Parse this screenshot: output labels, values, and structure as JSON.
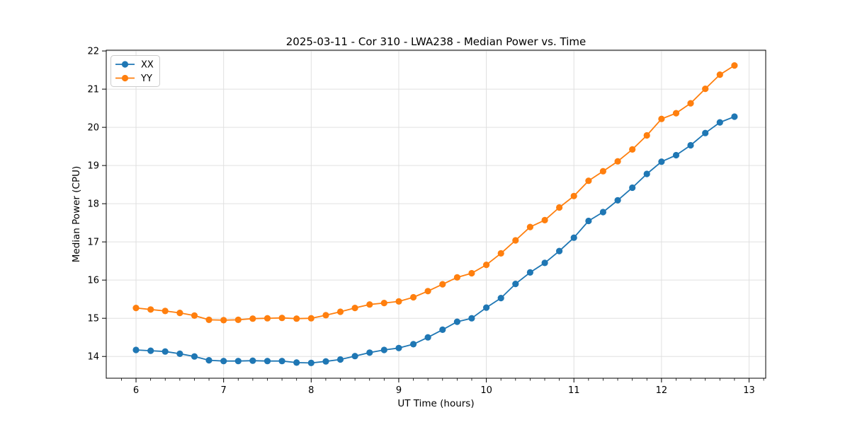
{
  "chart_data": {
    "type": "line",
    "title": "2025-03-11 - Cor 310 - LWA238 - Median Power vs. Time",
    "xlabel": "UT Time (hours)",
    "ylabel": "Median Power (CPU)",
    "grid": true,
    "legend_position": "upper left",
    "xlim": [
      5.66,
      13.19
    ],
    "ylim": [
      13.43,
      22.02
    ],
    "xticks": [
      6,
      7,
      8,
      9,
      10,
      11,
      12,
      13
    ],
    "yticks": [
      14,
      15,
      16,
      17,
      18,
      19,
      20,
      21,
      22
    ],
    "x_minor_tick_step": 0.16667,
    "x": [
      6.0,
      6.167,
      6.333,
      6.5,
      6.667,
      6.833,
      7.0,
      7.167,
      7.333,
      7.5,
      7.667,
      7.833,
      8.0,
      8.167,
      8.333,
      8.5,
      8.667,
      8.833,
      9.0,
      9.167,
      9.333,
      9.5,
      9.667,
      9.833,
      10.0,
      10.167,
      10.333,
      10.5,
      10.667,
      10.833,
      11.0,
      11.167,
      11.333,
      11.5,
      11.667,
      11.833,
      12.0,
      12.167,
      12.333,
      12.5,
      12.667,
      12.833
    ],
    "series": [
      {
        "name": "XX",
        "color": "#1f77b4",
        "values": [
          14.17,
          14.15,
          14.13,
          14.07,
          14.0,
          13.9,
          13.88,
          13.88,
          13.89,
          13.88,
          13.88,
          13.84,
          13.83,
          13.87,
          13.92,
          14.01,
          14.1,
          14.17,
          14.22,
          14.32,
          14.5,
          14.7,
          14.91,
          15.0,
          15.28,
          15.53,
          15.9,
          16.2,
          16.45,
          16.76,
          17.11,
          17.55,
          17.78,
          18.09,
          18.42,
          18.78,
          19.1,
          19.27,
          19.53,
          19.85,
          20.13,
          20.28
        ]
      },
      {
        "name": "YY",
        "color": "#ff7f0e",
        "values": [
          15.27,
          15.23,
          15.19,
          15.14,
          15.07,
          14.96,
          14.95,
          14.96,
          14.99,
          15.0,
          15.01,
          14.99,
          15.0,
          15.08,
          15.17,
          15.27,
          15.36,
          15.4,
          15.44,
          15.55,
          15.71,
          15.89,
          16.07,
          16.18,
          16.4,
          16.7,
          17.04,
          17.39,
          17.57,
          17.9,
          18.2,
          18.6,
          18.85,
          19.11,
          19.42,
          19.79,
          20.22,
          20.37,
          20.63,
          21.01,
          21.38,
          21.62
        ]
      }
    ],
    "style": {
      "grid_color": "#e0e0e0",
      "spine_color": "#000000",
      "background": "#ffffff",
      "marker_radius": 4.6,
      "line_width": 1.8
    }
  }
}
